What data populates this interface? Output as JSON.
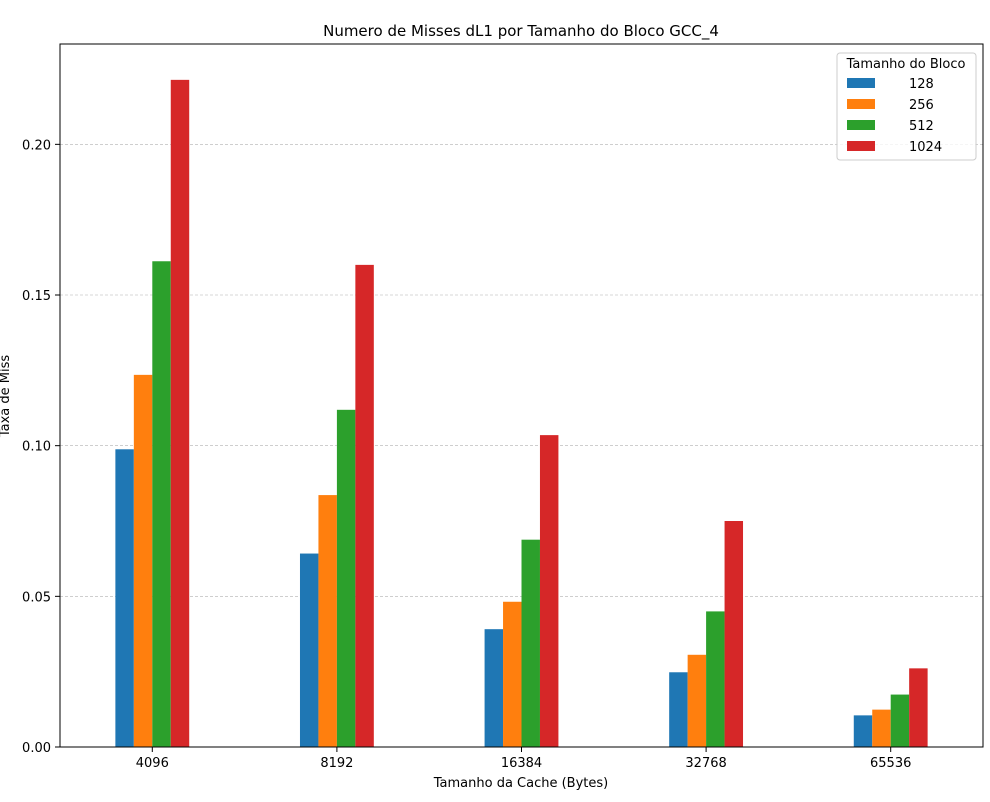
{
  "chart_data": {
    "type": "bar",
    "title": "Numero de Misses dL1 por Tamanho do Bloco GCC_4",
    "xlabel": "Tamanho da Cache (Bytes)",
    "ylabel": "Taxa de Miss",
    "categories": [
      "4096",
      "8192",
      "16384",
      "32768",
      "65536"
    ],
    "series": [
      {
        "name": "128",
        "color": "#1f77b4",
        "values": [
          0.0988,
          0.0642,
          0.0391,
          0.0248,
          0.0105
        ]
      },
      {
        "name": "256",
        "color": "#ff7f0e",
        "values": [
          0.1235,
          0.0836,
          0.0482,
          0.0306,
          0.0124
        ]
      },
      {
        "name": "512",
        "color": "#2ca02c",
        "values": [
          0.1612,
          0.1119,
          0.0688,
          0.045,
          0.0174
        ]
      },
      {
        "name": "1024",
        "color": "#d62728",
        "values": [
          0.2214,
          0.16,
          0.1035,
          0.075,
          0.0261
        ]
      }
    ],
    "ylim": [
      0,
      0.2333
    ],
    "yticks": [
      0.0,
      0.05,
      0.1,
      0.15,
      0.2
    ],
    "ytick_labels": [
      "0.00",
      "0.05",
      "0.10",
      "0.15",
      "0.20"
    ],
    "grid": "y-dashed",
    "legend": {
      "title": "Tamanho do Bloco",
      "placement": "top-right"
    }
  }
}
